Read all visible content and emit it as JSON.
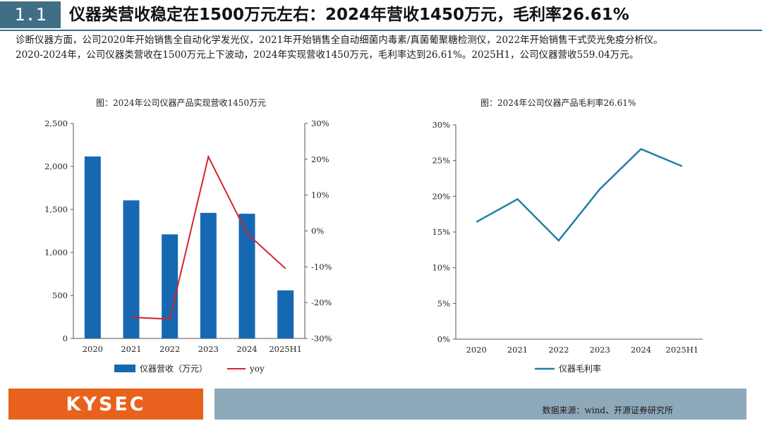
{
  "header": {
    "section_number": "1.1",
    "title": "仪器类营收稳定在1500万元左右：2024年营收1450万元，毛利率26.61%"
  },
  "description": {
    "paragraph1": "诊断仪器方面，公司2020年开始销售全自动化学发光仪，2021年开始销售全自动细菌内毒素/真菌葡聚糖检测仪，2022年开始销售干式荧光免疫分析仪。",
    "paragraph2": "2020-2024年，公司仪器类营收在1500万元上下波动，2024年实现营收1450万元，毛利率达到26.61%。2025H1，公司仪器营收559.04万元。"
  },
  "colors": {
    "header_bar": "#3f6e85",
    "bar": "#1668b3",
    "yoy_line": "#d3262b",
    "margin_line": "#1f7fa6",
    "logo_bg": "#e8621d",
    "source_bg": "#8ea9b9"
  },
  "chart_data": [
    {
      "type": "bar",
      "title": "图：2024年公司仪器产品实现营收1450万元",
      "categories": [
        "2020",
        "2021",
        "2022",
        "2023",
        "2024",
        "2025H1"
      ],
      "series": [
        {
          "name": "仪器营收（万元）",
          "axis": "left",
          "type": "bar",
          "values": [
            2115,
            1605,
            1210,
            1460,
            1450,
            559.04
          ]
        },
        {
          "name": "yoy",
          "axis": "right",
          "type": "line",
          "values": [
            null,
            -24.1,
            -24.6,
            20.7,
            -0.7,
            -10.5
          ]
        }
      ],
      "left_axis": {
        "ylim": [
          0,
          2500
        ],
        "ticks": [
          "0",
          "500",
          "1,000",
          "1,500",
          "2,000",
          "2,500"
        ]
      },
      "right_axis": {
        "ylim": [
          -30,
          30
        ],
        "ticks": [
          "-30%",
          "-20%",
          "-10%",
          "0%",
          "10%",
          "20%",
          "30%"
        ]
      },
      "legend": [
        "仪器营收（万元）",
        "yoy"
      ],
      "legend_position": "bottom"
    },
    {
      "type": "line",
      "title": "图：2024年公司仪器产品毛利率26.61%",
      "categories": [
        "2020",
        "2021",
        "2022",
        "2023",
        "2024",
        "2025H1"
      ],
      "series": [
        {
          "name": "仪器毛利率",
          "values": [
            16.4,
            19.6,
            13.8,
            21.0,
            26.61,
            24.2
          ]
        }
      ],
      "ylim": [
        0,
        30
      ],
      "ticks": [
        "0%",
        "5%",
        "10%",
        "15%",
        "20%",
        "25%",
        "30%"
      ],
      "legend": [
        "仪器毛利率"
      ],
      "legend_position": "bottom"
    }
  ],
  "footer": {
    "logo": "KYSEC",
    "source": "数据来源：wind、开源证券研究所"
  }
}
